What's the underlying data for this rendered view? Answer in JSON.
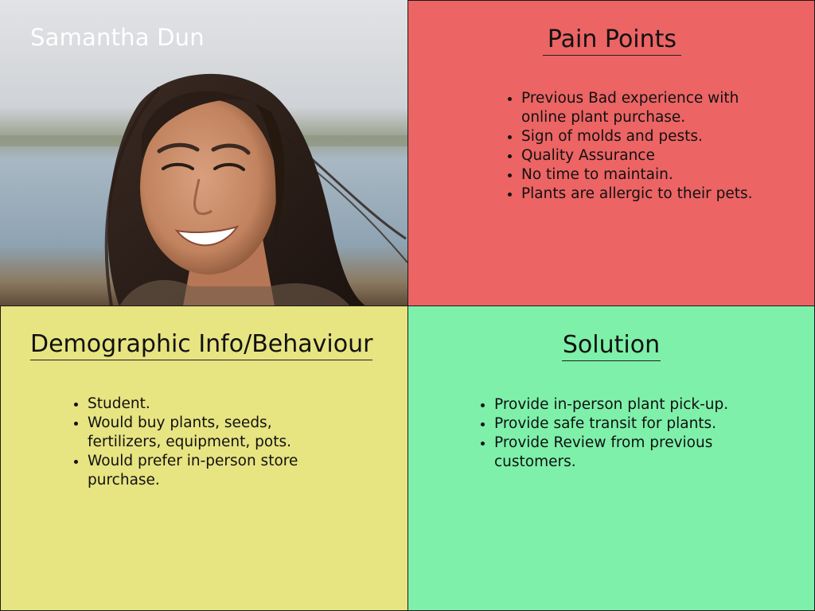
{
  "persona": {
    "name": "Samantha Dun",
    "photo": "smiling-woman-portrait"
  },
  "pain_points": {
    "heading": "Pain Points",
    "items": [
      "Previous Bad experience with online plant purchase.",
      "Sign of molds and pests.",
      "Quality Assurance",
      "No time to maintain.",
      "Plants are allergic to their pets."
    ],
    "color": "#ec6464"
  },
  "demographics": {
    "heading": "Demographic Info/Behaviour",
    "items": [
      "Student.",
      "Would buy plants, seeds, fertilizers, equipment, pots.",
      "Would prefer in-person store purchase."
    ],
    "color": "#e7e482"
  },
  "solution": {
    "heading": "Solution",
    "items": [
      "Provide in-person plant pick-up.",
      "Provide safe transit for plants.",
      "Provide Review from previous customers."
    ],
    "color": "#7ef0aa"
  }
}
